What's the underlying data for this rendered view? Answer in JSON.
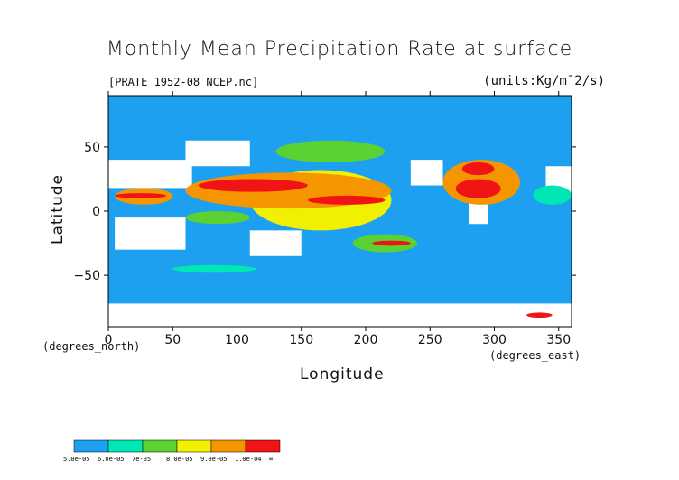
{
  "chart_data": {
    "type": "heatmap",
    "title": "Monthly Mean Precipitation Rate at surface",
    "dataset_label": "[PRATE_1952-08_NCEP.nc]",
    "units": "(units:Kg/m¯2/s)",
    "xlabel": "Longitude",
    "ylabel": "Latitude",
    "x_unit": "(degrees_east)",
    "y_unit": "(degrees_north)",
    "xlim": [
      0,
      360
    ],
    "ylim": [
      -90,
      90
    ],
    "x_ticks": [
      0,
      50,
      100,
      150,
      200,
      250,
      300,
      350
    ],
    "x_tick_labels": [
      "0",
      "50",
      "100",
      "150",
      "200",
      "250",
      "300",
      "350"
    ],
    "y_ticks": [
      50,
      0,
      -50
    ],
    "y_tick_labels": [
      "50",
      "0",
      "−50"
    ],
    "colorbar": {
      "levels": [
        "5.0e-05",
        "6.0e-05",
        "7e-05",
        "8.0e-05",
        "9.0e-05",
        "1.0e-04",
        "∞"
      ],
      "colors": [
        "#1ea0f0",
        "#00e6b4",
        "#5ad232",
        "#f0f000",
        "#f59600",
        "#f01414"
      ]
    },
    "background_color": "#1ea0f0",
    "below_threshold_color": "#ffffff",
    "regions": [
      {
        "level": 5,
        "lon": [
          70,
          155
        ],
        "lat": [
          15,
          25
        ]
      },
      {
        "level": 5,
        "lon": [
          155,
          215
        ],
        "lat": [
          5,
          12
        ]
      },
      {
        "level": 5,
        "lon": [
          5,
          45
        ],
        "lat": [
          10,
          14
        ]
      },
      {
        "level": 5,
        "lon": [
          270,
          305
        ],
        "lat": [
          10,
          25
        ]
      },
      {
        "level": 5,
        "lon": [
          275,
          300
        ],
        "lat": [
          28,
          38
        ]
      },
      {
        "level": 5,
        "lon": [
          205,
          235
        ],
        "lat": [
          -27,
          -23
        ]
      },
      {
        "level": 5,
        "lon": [
          325,
          345
        ],
        "lat": [
          -83,
          -79
        ]
      },
      {
        "level": 4,
        "lon": [
          5,
          50
        ],
        "lat": [
          5,
          18
        ]
      },
      {
        "level": 4,
        "lon": [
          60,
          220
        ],
        "lat": [
          2,
          30
        ]
      },
      {
        "level": 4,
        "lon": [
          260,
          320
        ],
        "lat": [
          5,
          40
        ]
      },
      {
        "level": 3,
        "lon": [
          110,
          220
        ],
        "lat": [
          -15,
          32
        ]
      },
      {
        "level": 2,
        "lon": [
          130,
          215
        ],
        "lat": [
          38,
          55
        ]
      },
      {
        "level": 2,
        "lon": [
          190,
          240
        ],
        "lat": [
          -32,
          -18
        ]
      },
      {
        "level": 2,
        "lon": [
          60,
          110
        ],
        "lat": [
          -10,
          0
        ]
      },
      {
        "level": 1,
        "lon": [
          50,
          115
        ],
        "lat": [
          -48,
          -42
        ]
      },
      {
        "level": 1,
        "lon": [
          330,
          360
        ],
        "lat": [
          5,
          20
        ]
      }
    ],
    "dry_areas": [
      {
        "lon": [
          0,
          65
        ],
        "lat": [
          18,
          40
        ]
      },
      {
        "lon": [
          5,
          60
        ],
        "lat": [
          -30,
          -5
        ]
      },
      {
        "lon": [
          340,
          360
        ],
        "lat": [
          10,
          35
        ]
      },
      {
        "lon": [
          110,
          150
        ],
        "lat": [
          -35,
          -15
        ]
      },
      {
        "lon": [
          280,
          295
        ],
        "lat": [
          -10,
          30
        ]
      },
      {
        "lon": [
          0,
          360
        ],
        "lat": [
          -90,
          -72
        ]
      },
      {
        "lon": [
          60,
          110
        ],
        "lat": [
          35,
          55
        ]
      },
      {
        "lon": [
          235,
          260
        ],
        "lat": [
          20,
          40
        ]
      }
    ]
  }
}
